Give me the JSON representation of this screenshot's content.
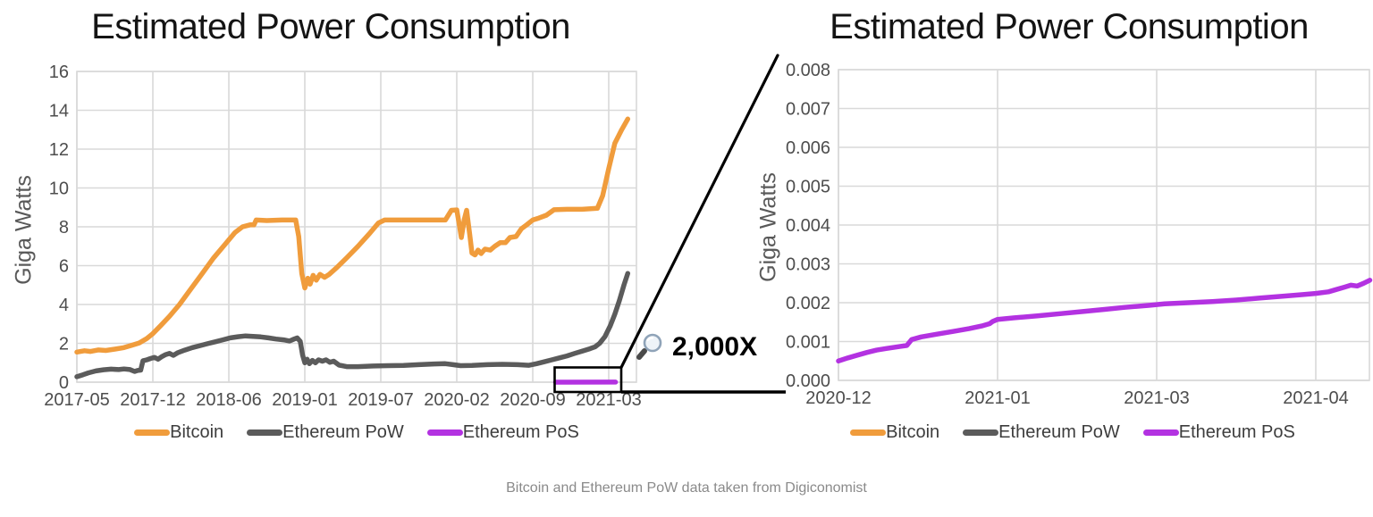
{
  "page": {
    "caption": "Bitcoin and Ethereum PoW data taken from Digiconomist"
  },
  "annotation": {
    "zoom_label": "2,000X",
    "icon": "magnifier-icon"
  },
  "colors": {
    "bitcoin": "#F09C3C",
    "ethereum_pow": "#5B5B5B",
    "ethereum_pos": "#B332E1",
    "grid": "#D9D9D9",
    "tick_text": "#4D4D4D",
    "axis_label_text": "#595959",
    "title_text": "#141414",
    "caption_text": "#8A8A8A",
    "annotation_line": "#000000"
  },
  "chart_data": [
    {
      "type": "line",
      "title": "Estimated Power Consumption",
      "ylabel": "Giga Watts",
      "xlabel": "",
      "x_unit": "tick_interval_index",
      "x_tick_labels": [
        "2017-05",
        "2017-12",
        "2018-06",
        "2019-01",
        "2019-07",
        "2020-02",
        "2020-09",
        "2021-03"
      ],
      "y_tick_labels": [
        "0",
        "2",
        "4",
        "6",
        "8",
        "10",
        "12",
        "14",
        "16"
      ],
      "ylim": [
        0,
        16
      ],
      "xlim": [
        0,
        7.36
      ],
      "grid": true,
      "legend_position": "bottom",
      "series": [
        {
          "name": "Bitcoin",
          "color_key": "bitcoin",
          "points": [
            [
              0.0,
              1.55
            ],
            [
              0.1,
              1.62
            ],
            [
              0.18,
              1.58
            ],
            [
              0.28,
              1.66
            ],
            [
              0.38,
              1.63
            ],
            [
              0.5,
              1.7
            ],
            [
              0.62,
              1.78
            ],
            [
              0.72,
              1.9
            ],
            [
              0.82,
              2.02
            ],
            [
              0.92,
              2.25
            ],
            [
              1.0,
              2.5
            ],
            [
              1.1,
              2.9
            ],
            [
              1.22,
              3.4
            ],
            [
              1.35,
              4.0
            ],
            [
              1.5,
              4.8
            ],
            [
              1.65,
              5.6
            ],
            [
              1.8,
              6.4
            ],
            [
              1.95,
              7.1
            ],
            [
              2.08,
              7.7
            ],
            [
              2.18,
              8.0
            ],
            [
              2.28,
              8.1
            ],
            [
              2.33,
              8.1
            ],
            [
              2.36,
              8.35
            ],
            [
              2.5,
              8.32
            ],
            [
              2.7,
              8.35
            ],
            [
              2.88,
              8.35
            ],
            [
              2.92,
              7.5
            ],
            [
              2.96,
              5.6
            ],
            [
              3.0,
              4.85
            ],
            [
              3.04,
              5.35
            ],
            [
              3.07,
              5.05
            ],
            [
              3.11,
              5.5
            ],
            [
              3.15,
              5.25
            ],
            [
              3.2,
              5.55
            ],
            [
              3.26,
              5.4
            ],
            [
              3.32,
              5.55
            ],
            [
              3.42,
              5.9
            ],
            [
              3.55,
              6.4
            ],
            [
              3.7,
              7.0
            ],
            [
              3.85,
              7.65
            ],
            [
              3.97,
              8.2
            ],
            [
              4.05,
              8.35
            ],
            [
              4.3,
              8.35
            ],
            [
              4.6,
              8.35
            ],
            [
              4.85,
              8.35
            ],
            [
              4.93,
              8.85
            ],
            [
              5.0,
              8.87
            ],
            [
              5.03,
              8.2
            ],
            [
              5.06,
              7.45
            ],
            [
              5.1,
              8.4
            ],
            [
              5.13,
              8.85
            ],
            [
              5.17,
              7.6
            ],
            [
              5.2,
              6.65
            ],
            [
              5.24,
              6.55
            ],
            [
              5.28,
              6.8
            ],
            [
              5.32,
              6.62
            ],
            [
              5.37,
              6.85
            ],
            [
              5.44,
              6.8
            ],
            [
              5.5,
              7.0
            ],
            [
              5.57,
              7.18
            ],
            [
              5.64,
              7.18
            ],
            [
              5.7,
              7.45
            ],
            [
              5.78,
              7.5
            ],
            [
              5.85,
              7.9
            ],
            [
              5.92,
              8.1
            ],
            [
              6.0,
              8.35
            ],
            [
              6.08,
              8.45
            ],
            [
              6.18,
              8.6
            ],
            [
              6.28,
              8.88
            ],
            [
              6.45,
              8.9
            ],
            [
              6.65,
              8.9
            ],
            [
              6.85,
              8.95
            ],
            [
              6.92,
              9.6
            ],
            [
              7.0,
              11.0
            ],
            [
              7.08,
              12.3
            ],
            [
              7.17,
              13.0
            ],
            [
              7.25,
              13.55
            ]
          ]
        },
        {
          "name": "Ethereum PoW",
          "color_key": "ethereum_pow",
          "points": [
            [
              0.0,
              0.28
            ],
            [
              0.08,
              0.38
            ],
            [
              0.15,
              0.48
            ],
            [
              0.25,
              0.58
            ],
            [
              0.35,
              0.64
            ],
            [
              0.45,
              0.67
            ],
            [
              0.55,
              0.65
            ],
            [
              0.62,
              0.68
            ],
            [
              0.7,
              0.65
            ],
            [
              0.76,
              0.55
            ],
            [
              0.8,
              0.6
            ],
            [
              0.84,
              0.62
            ],
            [
              0.87,
              1.1
            ],
            [
              0.92,
              1.15
            ],
            [
              0.97,
              1.22
            ],
            [
              1.02,
              1.28
            ],
            [
              1.07,
              1.18
            ],
            [
              1.12,
              1.32
            ],
            [
              1.17,
              1.42
            ],
            [
              1.22,
              1.48
            ],
            [
              1.27,
              1.38
            ],
            [
              1.33,
              1.52
            ],
            [
              1.42,
              1.65
            ],
            [
              1.52,
              1.78
            ],
            [
              1.62,
              1.88
            ],
            [
              1.72,
              1.98
            ],
            [
              1.82,
              2.08
            ],
            [
              1.92,
              2.18
            ],
            [
              2.02,
              2.28
            ],
            [
              2.12,
              2.34
            ],
            [
              2.22,
              2.38
            ],
            [
              2.32,
              2.36
            ],
            [
              2.42,
              2.33
            ],
            [
              2.52,
              2.28
            ],
            [
              2.62,
              2.22
            ],
            [
              2.72,
              2.18
            ],
            [
              2.8,
              2.12
            ],
            [
              2.86,
              2.22
            ],
            [
              2.9,
              2.28
            ],
            [
              2.94,
              2.1
            ],
            [
              2.97,
              1.4
            ],
            [
              3.0,
              1.0
            ],
            [
              3.03,
              1.18
            ],
            [
              3.06,
              0.95
            ],
            [
              3.1,
              1.12
            ],
            [
              3.14,
              1.0
            ],
            [
              3.18,
              1.15
            ],
            [
              3.23,
              1.08
            ],
            [
              3.28,
              1.15
            ],
            [
              3.33,
              1.02
            ],
            [
              3.38,
              1.08
            ],
            [
              3.45,
              0.88
            ],
            [
              3.55,
              0.8
            ],
            [
              3.7,
              0.8
            ],
            [
              3.9,
              0.83
            ],
            [
              4.1,
              0.85
            ],
            [
              4.3,
              0.86
            ],
            [
              4.5,
              0.9
            ],
            [
              4.7,
              0.94
            ],
            [
              4.85,
              0.95
            ],
            [
              4.95,
              0.9
            ],
            [
              5.05,
              0.85
            ],
            [
              5.2,
              0.86
            ],
            [
              5.4,
              0.9
            ],
            [
              5.6,
              0.92
            ],
            [
              5.8,
              0.9
            ],
            [
              5.95,
              0.87
            ],
            [
              6.05,
              0.95
            ],
            [
              6.15,
              1.05
            ],
            [
              6.25,
              1.15
            ],
            [
              6.35,
              1.25
            ],
            [
              6.45,
              1.35
            ],
            [
              6.55,
              1.48
            ],
            [
              6.65,
              1.6
            ],
            [
              6.75,
              1.72
            ],
            [
              6.82,
              1.82
            ],
            [
              6.88,
              2.0
            ],
            [
              6.95,
              2.35
            ],
            [
              7.02,
              2.9
            ],
            [
              7.08,
              3.5
            ],
            [
              7.14,
              4.2
            ],
            [
              7.2,
              5.0
            ],
            [
              7.25,
              5.6
            ]
          ]
        },
        {
          "name": "Ethereum PoS",
          "color_key": "ethereum_pos",
          "note": "approximately 0.0005-0.0026 GW, flat at zero on this scale, shown inside zoom box",
          "points": [
            [
              6.3,
              0.0005
            ],
            [
              7.09,
              0.0026
            ]
          ]
        }
      ]
    },
    {
      "type": "line",
      "title": "Estimated Power Consumption",
      "ylabel": "Giga Watts",
      "xlabel": "",
      "x_unit": "tick_interval_index",
      "x_tick_labels": [
        "2020-12",
        "2021-01",
        "2021-03",
        "2021-04"
      ],
      "y_tick_labels": [
        "0.000",
        "0.001",
        "0.002",
        "0.003",
        "0.004",
        "0.005",
        "0.006",
        "0.007",
        "0.008"
      ],
      "ylim": [
        0,
        0.008
      ],
      "xlim": [
        0,
        3.34
      ],
      "grid": true,
      "legend_position": "bottom",
      "series": [
        {
          "name": "Bitcoin",
          "color_key": "bitcoin",
          "points": []
        },
        {
          "name": "Ethereum PoW",
          "color_key": "ethereum_pow",
          "points": []
        },
        {
          "name": "Ethereum PoS",
          "color_key": "ethereum_pos",
          "points": [
            [
              0.0,
              0.0005
            ],
            [
              0.06,
              0.00058
            ],
            [
              0.12,
              0.00065
            ],
            [
              0.18,
              0.00072
            ],
            [
              0.24,
              0.00078
            ],
            [
              0.3,
              0.00082
            ],
            [
              0.38,
              0.00087
            ],
            [
              0.43,
              0.0009
            ],
            [
              0.46,
              0.00105
            ],
            [
              0.52,
              0.00112
            ],
            [
              0.62,
              0.00119
            ],
            [
              0.72,
              0.00126
            ],
            [
              0.82,
              0.00133
            ],
            [
              0.9,
              0.0014
            ],
            [
              0.95,
              0.00146
            ],
            [
              0.97,
              0.00152
            ],
            [
              1.0,
              0.00157
            ],
            [
              1.1,
              0.00161
            ],
            [
              1.25,
              0.00166
            ],
            [
              1.4,
              0.00172
            ],
            [
              1.55,
              0.00178
            ],
            [
              1.68,
              0.00183
            ],
            [
              1.8,
              0.00188
            ],
            [
              1.95,
              0.00193
            ],
            [
              2.05,
              0.00197
            ],
            [
              2.2,
              0.002
            ],
            [
              2.35,
              0.00203
            ],
            [
              2.5,
              0.00207
            ],
            [
              2.65,
              0.00212
            ],
            [
              2.8,
              0.00217
            ],
            [
              2.92,
              0.00221
            ],
            [
              3.0,
              0.00224
            ],
            [
              3.08,
              0.00228
            ],
            [
              3.13,
              0.00234
            ],
            [
              3.18,
              0.0024
            ],
            [
              3.22,
              0.00245
            ],
            [
              3.26,
              0.00243
            ],
            [
              3.3,
              0.0025
            ],
            [
              3.34,
              0.00258
            ]
          ]
        }
      ]
    }
  ]
}
